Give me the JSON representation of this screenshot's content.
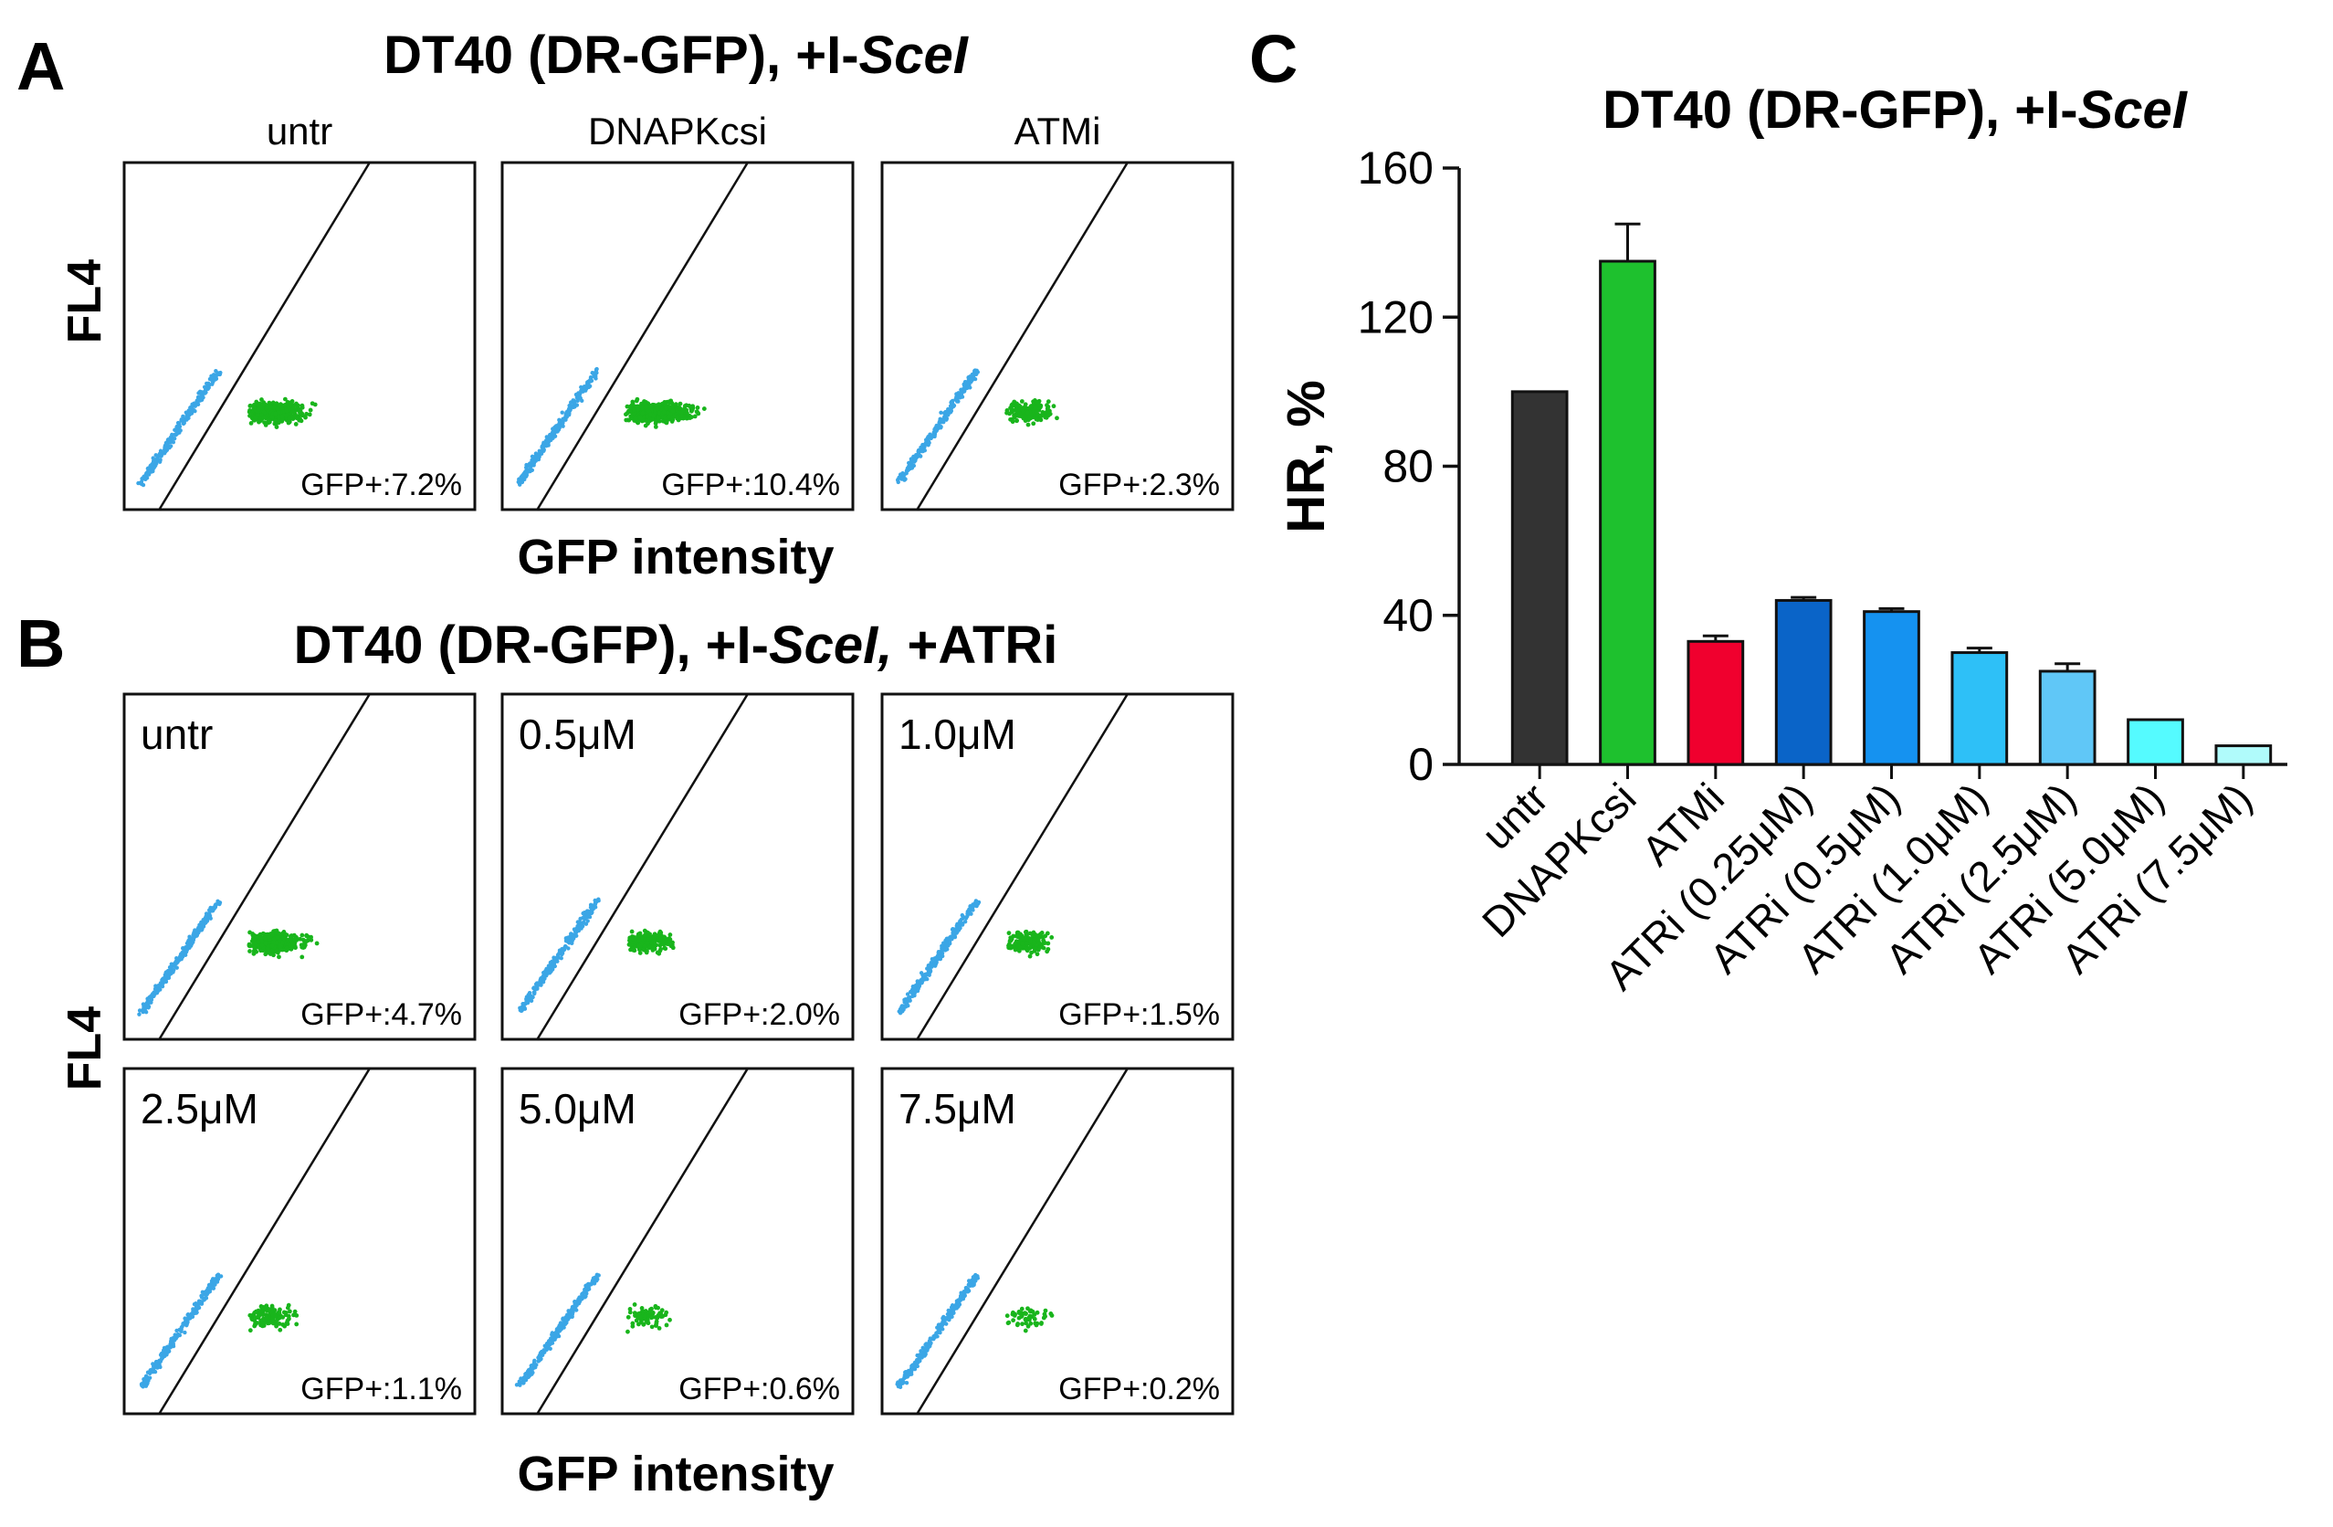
{
  "figure": {
    "panel_letters": {
      "a": "A",
      "b": "B",
      "c": "C"
    }
  },
  "panel_a": {
    "title_prefix": "DT40 (DR-GFP), +I-",
    "title_italic": "SceI",
    "y_label": "FL4",
    "x_label": "GFP intensity",
    "plots": [
      {
        "header": "untr",
        "gfp_label": "GFP+:7.2%",
        "gfp_percent": 7.2
      },
      {
        "header": "DNAPKcsi",
        "gfp_label": "GFP+:10.4%",
        "gfp_percent": 10.4
      },
      {
        "header": "ATMi",
        "gfp_label": "GFP+:2.3%",
        "gfp_percent": 2.3
      }
    ]
  },
  "panel_b": {
    "title_prefix": "DT40 (DR-GFP), +I-",
    "title_italic": "SceI,",
    "title_suffix": " +ATRi",
    "y_label": "FL4",
    "x_label": "GFP intensity",
    "plots": [
      {
        "header": "untr",
        "gfp_label": "GFP+:4.7%",
        "gfp_percent": 4.7
      },
      {
        "header": "0.5μM",
        "gfp_label": "GFP+:2.0%",
        "gfp_percent": 2.0
      },
      {
        "header": "1.0μM",
        "gfp_label": "GFP+:1.5%",
        "gfp_percent": 1.5
      },
      {
        "header": "2.5μM",
        "gfp_label": "GFP+:1.1%",
        "gfp_percent": 1.1
      },
      {
        "header": "5.0μM",
        "gfp_label": "GFP+:0.6%",
        "gfp_percent": 0.6
      },
      {
        "header": "7.5μM",
        "gfp_label": "GFP+:0.2%",
        "gfp_percent": 0.2
      }
    ]
  },
  "colors": {
    "gfp_negative": "#3ba6e6",
    "gfp_positive": "#19b51c",
    "gate_line": "#111111"
  },
  "chart_data": {
    "type": "bar",
    "title_prefix": "DT40 (DR-GFP), +I-",
    "title_italic": "SceI",
    "xlabel": "",
    "ylabel": "HR, %",
    "ylim": [
      0,
      160
    ],
    "yticks": [
      0,
      40,
      80,
      120,
      160
    ],
    "ytick_labels": [
      "0",
      "40",
      "80",
      "120",
      "160"
    ],
    "categories": [
      "untr",
      "DNAPKcsi",
      "ATMi",
      "ATRi (0.25μM)",
      "ATRi (0.5μM)",
      "ATRi (1.0μM)",
      "ATRi (2.5μM)",
      "ATRi (5.0μM)",
      "ATRi (7.5μM)"
    ],
    "values": [
      100,
      135,
      33,
      44,
      41,
      30,
      25,
      12,
      5
    ],
    "errors": [
      0,
      10,
      1.5,
      0.8,
      0.8,
      1.2,
      2,
      0,
      0
    ],
    "colors": [
      "#333333",
      "#1ec12e",
      "#f0002e",
      "#0a64c8",
      "#1592f0",
      "#2ec0f7",
      "#60c7f7",
      "#55fbff",
      "#b0fbfb"
    ]
  }
}
